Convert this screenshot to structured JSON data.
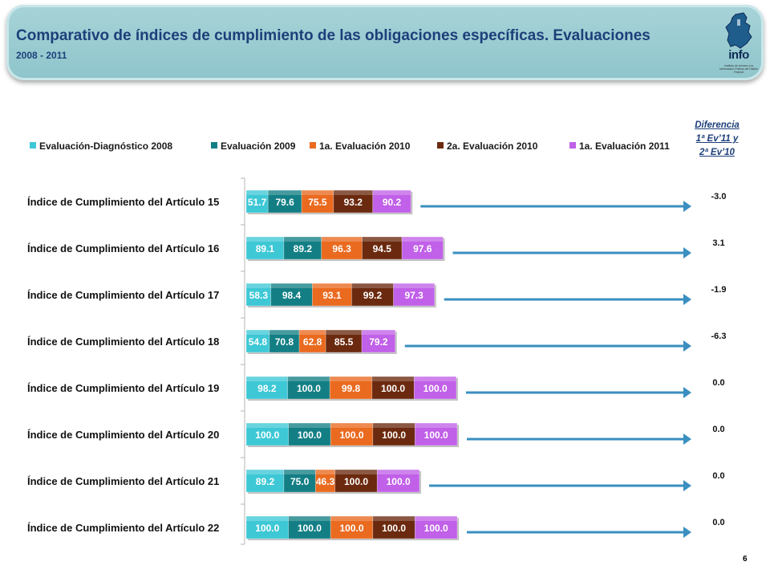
{
  "header": {
    "title": "Comparativo de índices de cumplimiento de las obligaciones específicas. Evaluaciones",
    "subtitle": "2008 - 2011",
    "logo_text": "info",
    "logo_small_text": "Instituto de Acceso a la Información Pública del Distrito Federal"
  },
  "diff_header": {
    "line1": "Diferencia",
    "line2": "1ª Ev’11 y",
    "line3": "2ª Ev’10"
  },
  "page_number": "6",
  "colors": {
    "series": [
      "#3ec8d6",
      "#137f85",
      "#ea6a1f",
      "#6b2a0f",
      "#c160e8"
    ],
    "banner": "#95c8ce",
    "title": "#1d3f7a",
    "arrow": "#3a8fc0"
  },
  "chart_data": {
    "type": "bar",
    "orientation": "horizontal",
    "stacked": true,
    "legend_position": "top",
    "categories": [
      "Índice de Cumplimiento del Artículo 15",
      "Índice de Cumplimiento del Artículo 16",
      "Índice de Cumplimiento del Artículo 17",
      "Índice de Cumplimiento del Artículo 18",
      "Índice de Cumplimiento del Artículo 19",
      "Índice de Cumplimiento del Artículo 20",
      "Índice de Cumplimiento del Artículo 21",
      "Índice de Cumplimiento del Artículo 22"
    ],
    "series": [
      {
        "name": "Evaluación-Diagnóstico 2008",
        "values": [
          51.7,
          89.1,
          58.3,
          54.8,
          98.2,
          100.0,
          89.2,
          100.0
        ]
      },
      {
        "name": "Evaluación 2009",
        "values": [
          79.6,
          89.2,
          98.4,
          70.8,
          100.0,
          100.0,
          75.0,
          100.0
        ]
      },
      {
        "name": "1a. Evaluación 2010",
        "values": [
          75.5,
          96.3,
          93.1,
          62.8,
          99.8,
          100.0,
          46.3,
          100.0
        ]
      },
      {
        "name": "2a. Evaluación 2010",
        "values": [
          93.2,
          94.5,
          99.2,
          85.5,
          100.0,
          100.0,
          100.0,
          100.0
        ]
      },
      {
        "name": "1a. Evaluación 2011",
        "values": [
          90.2,
          97.6,
          97.3,
          79.2,
          100.0,
          100.0,
          100.0,
          100.0
        ]
      }
    ],
    "differences": [
      "-3.0",
      "3.1",
      "-1.9",
      "-6.3",
      "0.0",
      "0.0",
      "0.0",
      "0.0"
    ],
    "grid": false
  }
}
